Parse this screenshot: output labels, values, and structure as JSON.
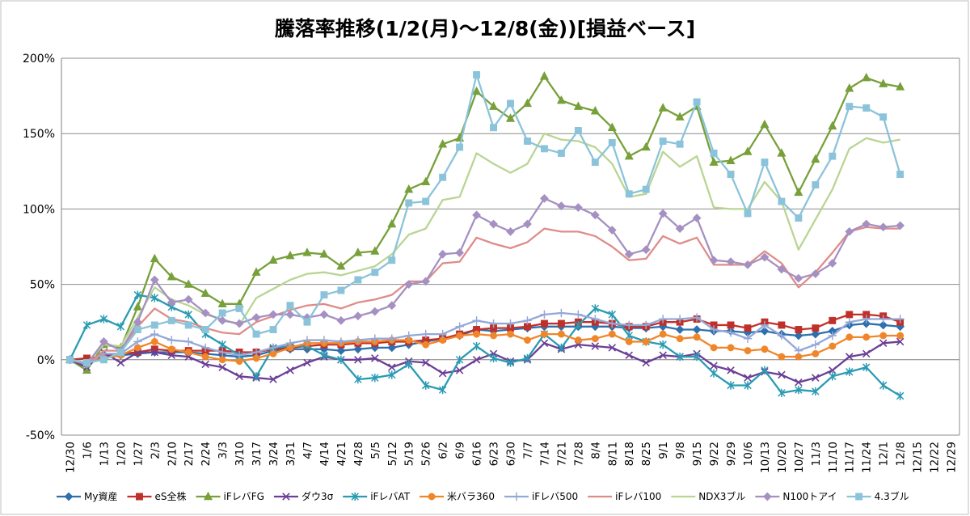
{
  "chart_data": {
    "type": "line",
    "title": "騰落率推移(1/2(月)～12/8(金))[損益ベース]",
    "xlabel": "",
    "ylabel": "",
    "ylim": [
      -50,
      200
    ],
    "y_ticks": [
      -50,
      0,
      50,
      100,
      150,
      200
    ],
    "y_tick_labels": [
      "-50%",
      "0%",
      "50%",
      "100%",
      "150%",
      "200%"
    ],
    "grid": "horizontal",
    "legend_position": "bottom",
    "categories": [
      "12/30",
      "1/6",
      "1/13",
      "1/20",
      "1/27",
      "2/3",
      "2/10",
      "2/17",
      "2/24",
      "3/3",
      "3/10",
      "3/17",
      "3/24",
      "3/31",
      "4/7",
      "4/14",
      "4/21",
      "4/28",
      "5/5",
      "5/12",
      "5/19",
      "5/26",
      "6/2",
      "6/9",
      "6/16",
      "6/23",
      "6/30",
      "7/7",
      "7/14",
      "7/21",
      "7/28",
      "8/4",
      "8/11",
      "8/18",
      "8/25",
      "9/1",
      "9/8",
      "9/15",
      "9/22",
      "9/29",
      "10/6",
      "10/13",
      "10/20",
      "10/27",
      "11/3",
      "11/10",
      "11/17",
      "11/24",
      "12/1",
      "12/8",
      "12/15",
      "12/22",
      "12/29"
    ],
    "series": [
      {
        "name": "My資産",
        "color": "#2e6fad",
        "marker": "diamond",
        "values": [
          0,
          -3,
          3,
          3,
          4,
          5,
          5,
          5,
          4,
          3,
          2,
          3,
          6,
          7,
          7,
          7,
          6,
          7,
          8,
          8,
          10,
          12,
          14,
          16,
          20,
          19,
          20,
          21,
          22,
          22,
          22,
          22,
          22,
          21,
          21,
          22,
          20,
          20,
          19,
          19,
          18,
          19,
          17,
          16,
          17,
          19,
          23,
          24,
          23,
          22,
          null,
          null,
          null
        ]
      },
      {
        "name": "eS全株",
        "color": "#c0302a",
        "marker": "square",
        "values": [
          0,
          1,
          2,
          4,
          5,
          7,
          6,
          6,
          6,
          6,
          5,
          5,
          7,
          8,
          9,
          10,
          10,
          11,
          11,
          12,
          12,
          13,
          14,
          17,
          20,
          21,
          21,
          22,
          24,
          24,
          25,
          25,
          24,
          22,
          22,
          25,
          25,
          27,
          23,
          23,
          21,
          25,
          23,
          20,
          21,
          26,
          30,
          30,
          29,
          25,
          null,
          null,
          null
        ]
      },
      {
        "name": "iFレバFG",
        "color": "#77a03a",
        "marker": "triangle",
        "values": [
          0,
          -7,
          10,
          8,
          35,
          67,
          55,
          50,
          44,
          37,
          37,
          58,
          66,
          69,
          71,
          70,
          62,
          71,
          72,
          90,
          113,
          118,
          143,
          147,
          178,
          168,
          160,
          170,
          188,
          172,
          168,
          165,
          154,
          135,
          141,
          167,
          161,
          168,
          131,
          132,
          138,
          156,
          137,
          111,
          133,
          155,
          180,
          187,
          183,
          181,
          null,
          null,
          null
        ]
      },
      {
        "name": "ダウ3σ",
        "color": "#6b3f96",
        "marker": "x",
        "values": [
          0,
          -5,
          5,
          -2,
          5,
          5,
          3,
          2,
          -3,
          -5,
          -11,
          -12,
          -13,
          -7,
          -2,
          2,
          0,
          0,
          1,
          -5,
          -1,
          -2,
          -9,
          -7,
          0,
          4,
          -1,
          0,
          11,
          7,
          10,
          9,
          8,
          3,
          -2,
          3,
          2,
          4,
          -4,
          -7,
          -12,
          -8,
          -10,
          -15,
          -12,
          -7,
          2,
          4,
          11,
          12,
          null,
          null,
          null
        ]
      },
      {
        "name": "iFレバAT",
        "color": "#2a9bb3",
        "marker": "asterisk",
        "values": [
          0,
          23,
          27,
          22,
          43,
          41,
          35,
          30,
          17,
          10,
          3,
          -11,
          8,
          9,
          9,
          3,
          0,
          -13,
          -12,
          -10,
          -3,
          -17,
          -20,
          0,
          9,
          1,
          -2,
          1,
          17,
          8,
          23,
          34,
          30,
          16,
          12,
          10,
          2,
          2,
          -9,
          -17,
          -17,
          -7,
          -22,
          -20,
          -21,
          -11,
          -8,
          -5,
          -17,
          -24,
          null,
          null,
          null
        ]
      },
      {
        "name": "米バラ360",
        "color": "#f0862a",
        "marker": "circle",
        "values": [
          0,
          -2,
          1,
          3,
          8,
          12,
          7,
          5,
          2,
          0,
          -1,
          1,
          4,
          8,
          11,
          11,
          11,
          12,
          12,
          13,
          13,
          10,
          13,
          16,
          17,
          16,
          17,
          13,
          17,
          17,
          13,
          14,
          17,
          12,
          12,
          17,
          14,
          15,
          8,
          8,
          6,
          7,
          2,
          2,
          4,
          9,
          15,
          15,
          16,
          16,
          null,
          null,
          null
        ]
      },
      {
        "name": "iFレバ500",
        "color": "#94a8d8",
        "marker": "plus",
        "values": [
          0,
          -3,
          4,
          4,
          12,
          17,
          13,
          12,
          8,
          5,
          3,
          5,
          8,
          11,
          13,
          13,
          12,
          13,
          14,
          14,
          16,
          17,
          17,
          22,
          26,
          24,
          24,
          26,
          30,
          31,
          30,
          27,
          24,
          23,
          23,
          27,
          27,
          28,
          20,
          18,
          14,
          23,
          16,
          6,
          10,
          16,
          25,
          27,
          27,
          27,
          null,
          null,
          null
        ]
      },
      {
        "name": "iFレバ100",
        "color": "#de8c8a",
        "marker": "none",
        "values": [
          0,
          -3,
          6,
          6,
          22,
          34,
          27,
          25,
          21,
          18,
          17,
          25,
          29,
          33,
          36,
          37,
          34,
          38,
          40,
          43,
          52,
          52,
          64,
          65,
          81,
          77,
          74,
          78,
          87,
          85,
          85,
          82,
          75,
          66,
          67,
          82,
          77,
          81,
          63,
          63,
          63,
          72,
          64,
          48,
          58,
          71,
          85,
          88,
          87,
          87,
          null,
          null,
          null
        ]
      },
      {
        "name": "NDX3ブル",
        "color": "#b9d593",
        "marker": "none",
        "values": [
          0,
          -2,
          10,
          9,
          28,
          48,
          40,
          36,
          30,
          27,
          23,
          41,
          47,
          53,
          57,
          58,
          56,
          59,
          62,
          70,
          83,
          87,
          106,
          108,
          137,
          130,
          124,
          130,
          150,
          146,
          145,
          141,
          130,
          108,
          110,
          138,
          128,
          135,
          101,
          100,
          100,
          118,
          105,
          73,
          93,
          113,
          140,
          147,
          144,
          146,
          null,
          null,
          null
        ]
      },
      {
        "name": "N100トアイ",
        "color": "#a590c2",
        "marker": "diamond",
        "values": [
          0,
          -3,
          12,
          6,
          25,
          53,
          38,
          40,
          31,
          26,
          24,
          28,
          30,
          30,
          28,
          30,
          26,
          29,
          32,
          36,
          50,
          52,
          70,
          71,
          96,
          90,
          85,
          90,
          107,
          102,
          101,
          96,
          86,
          70,
          73,
          97,
          87,
          94,
          66,
          65,
          63,
          68,
          60,
          54,
          57,
          64,
          85,
          90,
          88,
          89,
          null,
          null,
          null
        ]
      },
      {
        "name": "4.3ブル",
        "color": "#8bc3da",
        "marker": "square",
        "values": [
          0,
          -2,
          0,
          5,
          20,
          23,
          26,
          23,
          20,
          31,
          34,
          17,
          20,
          36,
          25,
          43,
          46,
          53,
          58,
          66,
          104,
          105,
          121,
          141,
          189,
          154,
          170,
          145,
          140,
          137,
          152,
          131,
          144,
          110,
          113,
          145,
          143,
          171,
          137,
          123,
          97,
          131,
          105,
          94,
          116,
          135,
          168,
          167,
          161,
          123,
          null,
          null,
          null
        ]
      }
    ]
  }
}
